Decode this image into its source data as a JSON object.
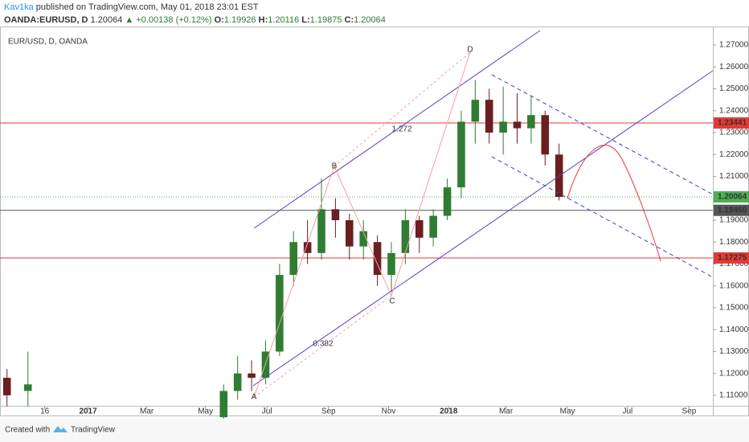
{
  "header": {
    "author": "Kav1ka",
    "published": "published on TradingView.com, May 01, 2018 23:01 EST",
    "symbol": "OANDA:EURUSD, D",
    "last": "1.20064",
    "change": "▲ +0.00138 (+0.12%)",
    "open_label": "O:",
    "open": "1.19926",
    "high_label": "H:",
    "high": "1.20116",
    "low_label": "L:",
    "low": "1.19875",
    "close_label": "C:",
    "close": "1.20064"
  },
  "footer": {
    "created": "Created with",
    "brand": "TradingView"
  },
  "chart_data": {
    "type": "candlestick",
    "title": "EUR/USD, D, OANDA",
    "x": [
      0.5,
      2,
      16,
      17,
      18,
      19,
      20,
      21,
      22,
      23,
      24,
      25,
      26,
      27,
      28,
      29,
      30,
      31,
      32,
      33,
      34,
      35,
      36,
      37,
      38,
      39,
      40
    ],
    "open": [
      1.118,
      1.112,
      1.1,
      1.112,
      1.12,
      1.118,
      1.13,
      1.165,
      1.18,
      1.175,
      1.195,
      1.19,
      1.178,
      1.18,
      1.165,
      1.175,
      1.19,
      1.182,
      1.192,
      1.205,
      1.235,
      1.245,
      1.23,
      1.235,
      1.232,
      1.238,
      1.22
    ],
    "high": [
      1.122,
      1.13,
      1.115,
      1.128,
      1.126,
      1.135,
      1.17,
      1.185,
      1.19,
      1.209,
      1.2,
      1.193,
      1.19,
      1.183,
      1.18,
      1.195,
      1.192,
      1.195,
      1.209,
      1.24,
      1.254,
      1.25,
      1.251,
      1.248,
      1.247,
      1.24,
      1.225
    ],
    "low": [
      1.105,
      1.105,
      1.098,
      1.108,
      1.112,
      1.115,
      1.128,
      1.16,
      1.17,
      1.172,
      1.182,
      1.172,
      1.172,
      1.16,
      1.157,
      1.17,
      1.175,
      1.178,
      1.19,
      1.2,
      1.225,
      1.225,
      1.22,
      1.225,
      1.225,
      1.215,
      1.199
    ],
    "close": [
      1.11,
      1.115,
      1.112,
      1.12,
      1.118,
      1.13,
      1.165,
      1.18,
      1.175,
      1.195,
      1.19,
      1.178,
      1.185,
      1.165,
      1.175,
      1.19,
      1.182,
      1.192,
      1.205,
      1.235,
      1.245,
      1.23,
      1.235,
      1.232,
      1.238,
      1.22,
      1.20064
    ],
    "up_color": "#2e7d32",
    "down_color": "#6b1f1f",
    "xlim": [
      0,
      51
    ],
    "xticks": [
      {
        "value": 3.2,
        "label": "16"
      },
      {
        "value": 6.3,
        "label": "2017"
      },
      {
        "value": 10.5,
        "label": "Mar"
      },
      {
        "value": 14.7,
        "label": "May"
      },
      {
        "value": 19.1,
        "label": "Jul"
      },
      {
        "value": 23.5,
        "label": "Sep"
      },
      {
        "value": 27.8,
        "label": "Nov"
      },
      {
        "value": 32.1,
        "label": "2018"
      },
      {
        "value": 36.2,
        "label": "Mar"
      },
      {
        "value": 40.6,
        "label": "May"
      },
      {
        "value": 44.9,
        "label": "Jul"
      },
      {
        "value": 49.3,
        "label": "Sep"
      }
    ],
    "ylim": [
      1.1052,
      1.2781
    ],
    "yticks": [
      {
        "value": 1.27,
        "label": "1.27000"
      },
      {
        "value": 1.26,
        "label": "1.26000"
      },
      {
        "value": 1.25,
        "label": "1.25000"
      },
      {
        "value": 1.24,
        "label": "1.24000"
      },
      {
        "value": 1.23,
        "label": "1.23000"
      },
      {
        "value": 1.22,
        "label": "1.22000"
      },
      {
        "value": 1.21,
        "label": "1.21000"
      },
      {
        "value": 1.2,
        "label": "1.20000"
      },
      {
        "value": 1.19,
        "label": "1.19000"
      },
      {
        "value": 1.18,
        "label": "1.18000"
      },
      {
        "value": 1.17,
        "label": "1.17000"
      },
      {
        "value": 1.16,
        "label": "1.16000"
      },
      {
        "value": 1.15,
        "label": "1.15000"
      },
      {
        "value": 1.14,
        "label": "1.14000"
      },
      {
        "value": 1.13,
        "label": "1.13000"
      },
      {
        "value": 1.12,
        "label": "1.12000"
      },
      {
        "value": 1.11,
        "label": "1.11000"
      }
    ],
    "levels": [
      {
        "value": 1.23441,
        "label": "1.23441",
        "color": "#e53935"
      },
      {
        "value": 1.20064,
        "label": "1.20064",
        "color": "#4caf50"
      },
      {
        "value": 1.1945,
        "label": "1.19450",
        "color": "#555555"
      },
      {
        "value": 1.17275,
        "label": "1.17275",
        "color": "#e53935"
      }
    ],
    "pattern_labels": [
      "A",
      "B",
      "C",
      "D",
      "1.272",
      "0.382"
    ]
  }
}
